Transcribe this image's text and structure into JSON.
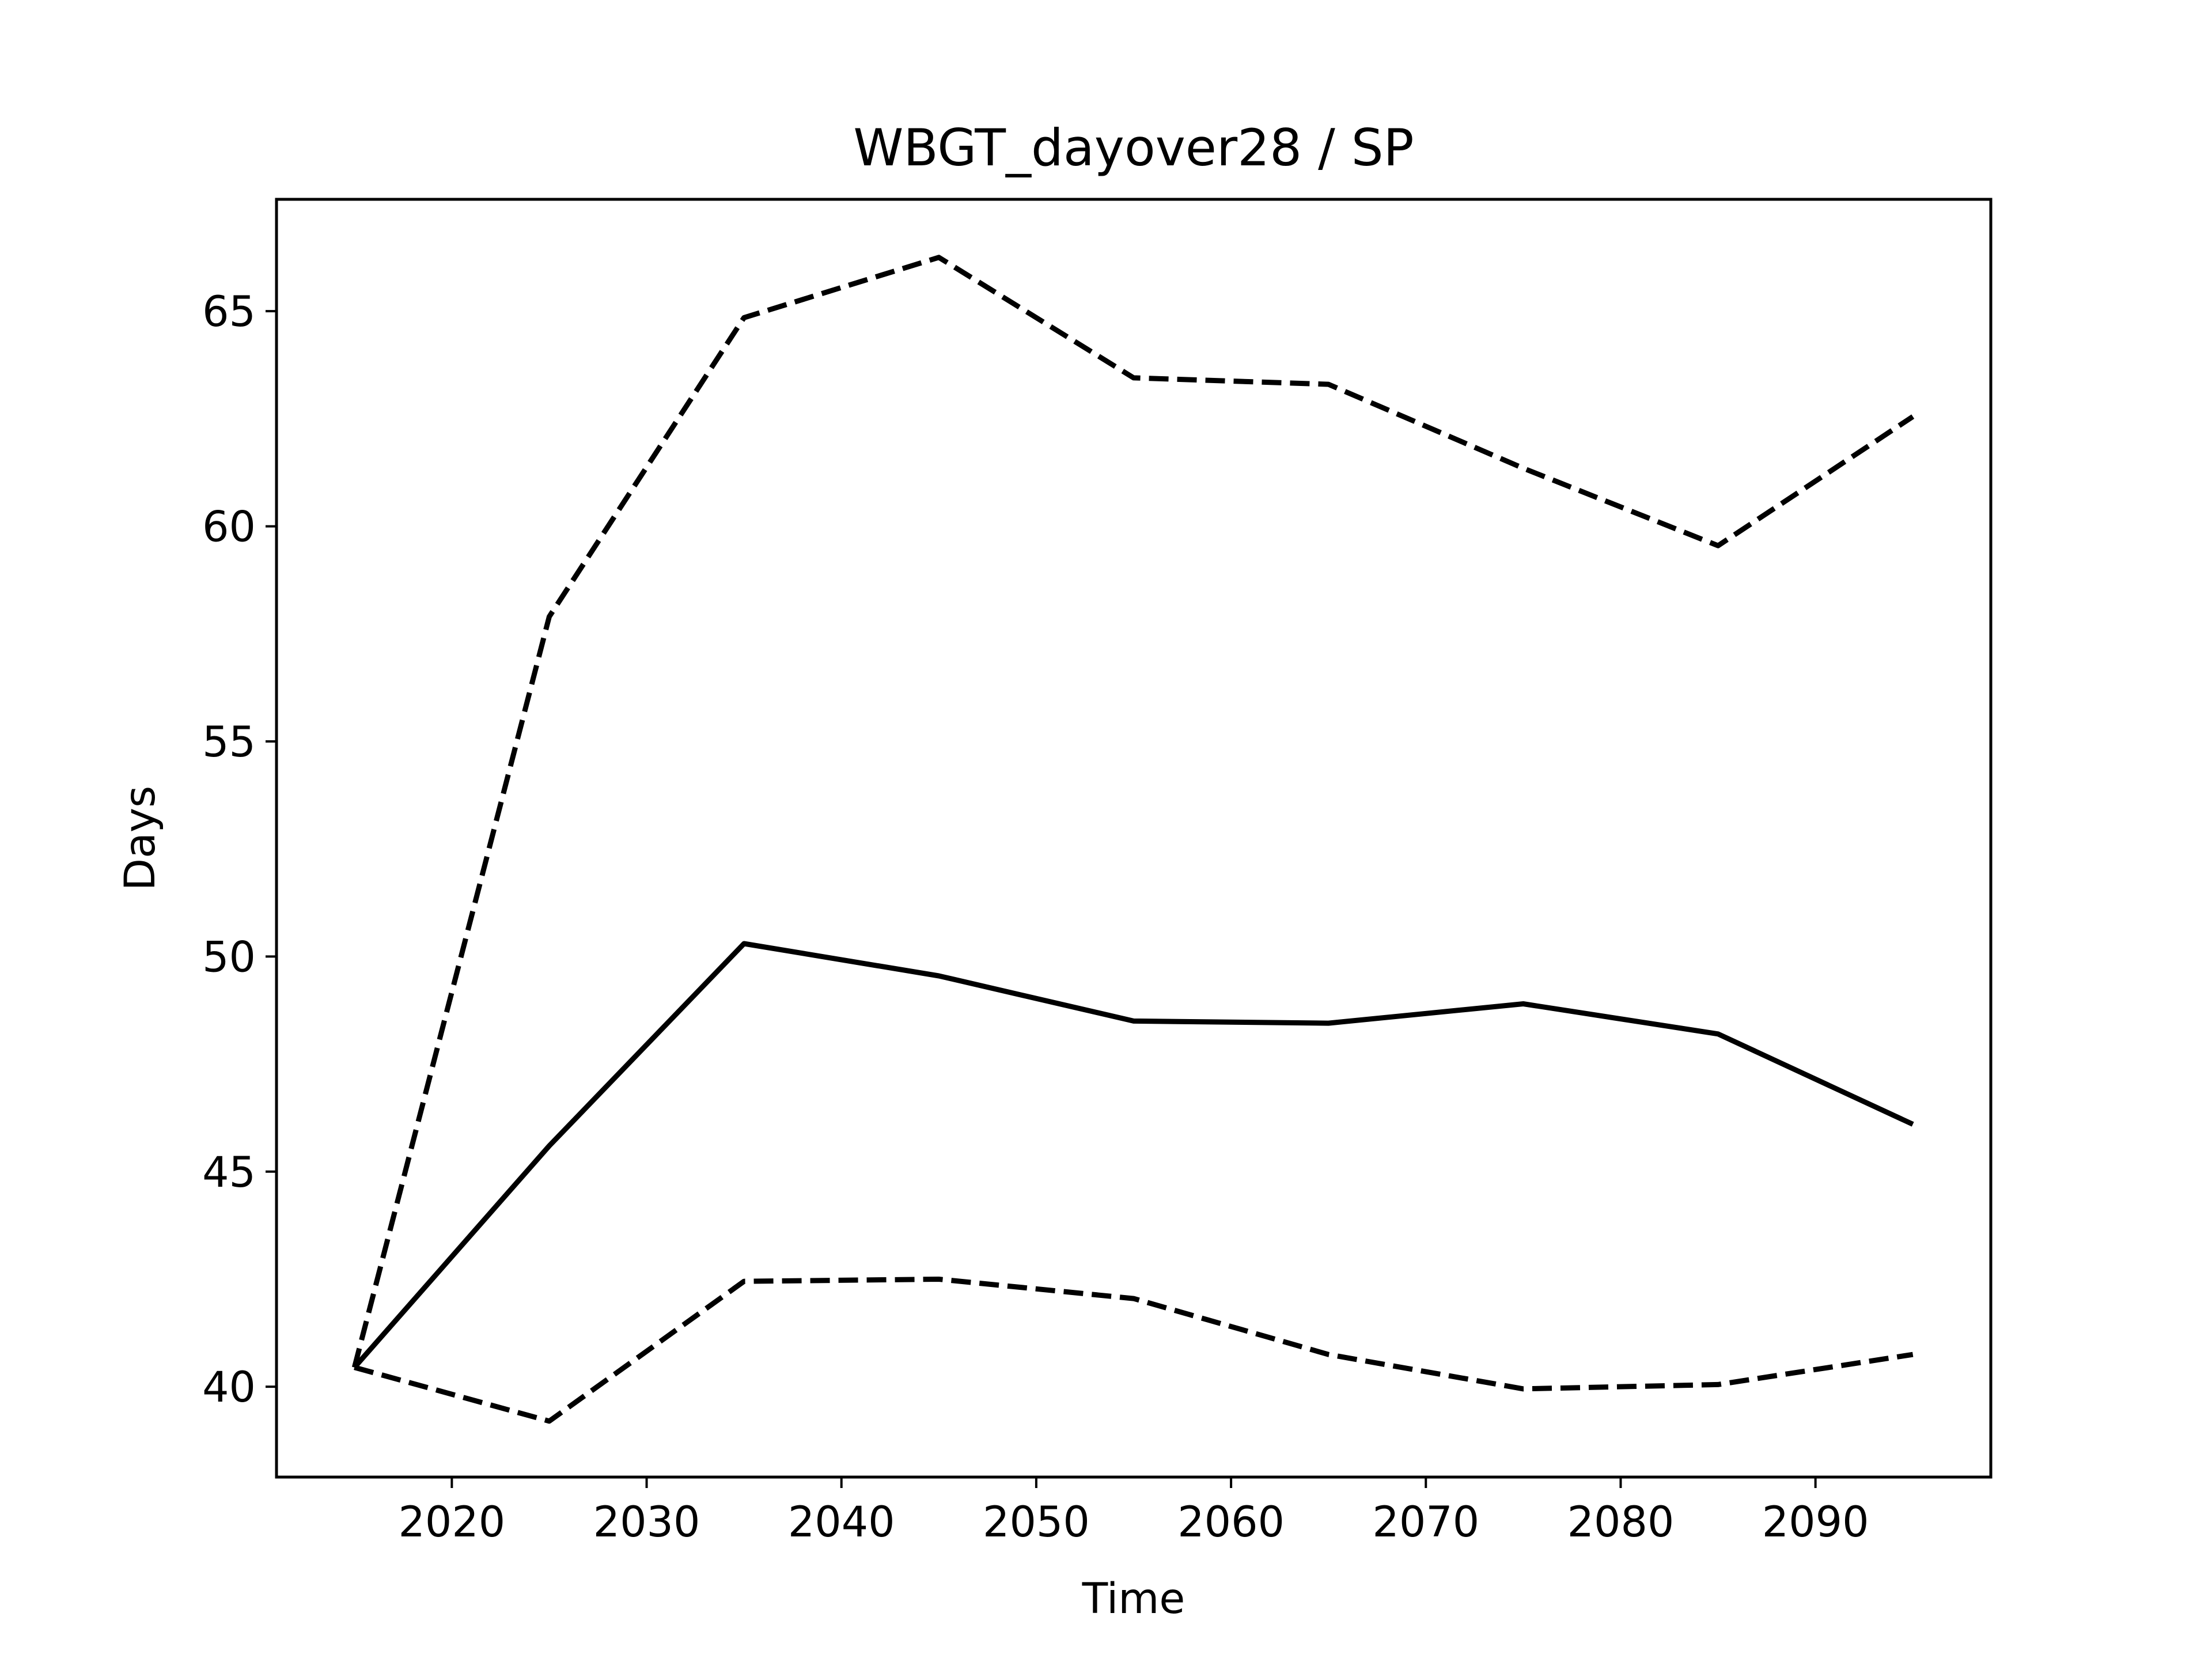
{
  "chart_data": {
    "type": "line",
    "title": "WBGT_dayover28 / SP",
    "xlabel": "Time",
    "ylabel": "Days",
    "x": [
      2015,
      2025,
      2035,
      2045,
      2055,
      2065,
      2075,
      2085,
      2095
    ],
    "xlim": [
      2011,
      2099
    ],
    "ylim": [
      37.9,
      67.6
    ],
    "xticks": [
      2020,
      2030,
      2040,
      2050,
      2060,
      2070,
      2080,
      2090
    ],
    "yticks": [
      40,
      45,
      50,
      55,
      60,
      65
    ],
    "grid": false,
    "series": [
      {
        "style": "dashed",
        "values": [
          40.45,
          57.9,
          64.85,
          66.25,
          63.45,
          63.3,
          61.35,
          59.55,
          62.55
        ]
      },
      {
        "style": "solid",
        "values": [
          40.45,
          45.6,
          50.3,
          49.55,
          48.5,
          48.45,
          48.9,
          48.2,
          46.1
        ]
      },
      {
        "style": "dashed",
        "values": [
          40.45,
          39.2,
          42.45,
          42.5,
          42.05,
          40.75,
          39.95,
          40.05,
          40.75
        ]
      }
    ],
    "colors": {
      "lines": "#000000",
      "axes": "#000000",
      "background": "#ffffff"
    }
  }
}
